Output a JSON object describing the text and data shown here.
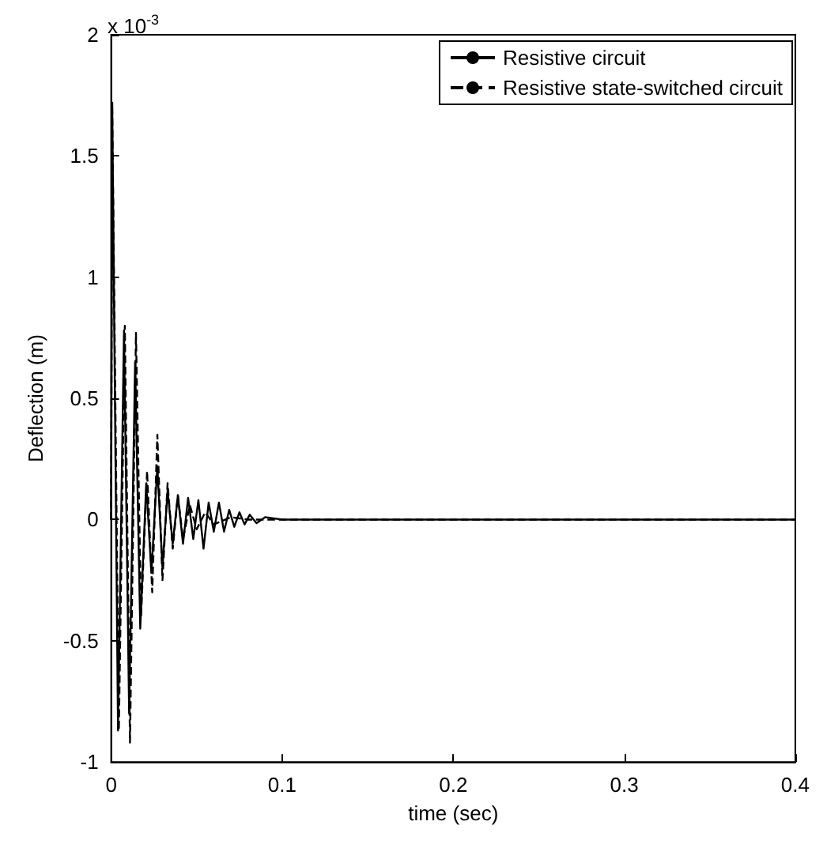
{
  "chart_data": {
    "type": "line",
    "xlabel": "time (sec)",
    "ylabel": "Deflection (m)",
    "annotations": [
      "x 10$^{-3}$"
    ],
    "xlim": [
      0,
      0.4
    ],
    "xticks": [
      0,
      0.1,
      0.2,
      0.3,
      0.4
    ],
    "ylim": [
      -1,
      2
    ],
    "yticks": [
      -1,
      -0.5,
      0,
      0.5,
      1,
      1.5,
      2
    ],
    "grid": false,
    "legend": "top right",
    "marker": "none",
    "series": [
      {
        "name": "Resistive circuit",
        "color": "#000000",
        "line_style": "solid",
        "x": [
          0,
          0.0006,
          0.004,
          0.0075,
          0.0105,
          0.014,
          0.017,
          0.0205,
          0.0235,
          0.027,
          0.03,
          0.033,
          0.036,
          0.039,
          0.042,
          0.045,
          0.048,
          0.051,
          0.054,
          0.057,
          0.06,
          0.063,
          0.066,
          0.069,
          0.072,
          0.075,
          0.078,
          0.081,
          0.085,
          0.09,
          0.1,
          0.4
        ],
        "values": [
          0,
          1.72,
          -0.87,
          0.78,
          -0.8,
          0.65,
          -0.45,
          0.15,
          -0.22,
          0.22,
          -0.2,
          0.12,
          -0.1,
          0.1,
          -0.1,
          0.09,
          -0.08,
          0.08,
          -0.12,
          0.07,
          -0.05,
          0.07,
          -0.05,
          0.04,
          -0.03,
          0.03,
          -0.02,
          0.02,
          -0.015,
          0.01,
          0,
          0
        ]
      },
      {
        "name": "Resistive state-switched circuit",
        "color": "#000000",
        "line_style": "dashed",
        "x": [
          0,
          0.0006,
          0.0045,
          0.008,
          0.011,
          0.0145,
          0.0175,
          0.021,
          0.024,
          0.027,
          0.03,
          0.033,
          0.036,
          0.039,
          0.042,
          0.046,
          0.05,
          0.055,
          0.06,
          0.07,
          0.08,
          0.4
        ],
        "values": [
          0,
          1.72,
          -0.87,
          0.8,
          -0.92,
          0.77,
          -0.4,
          0.2,
          -0.3,
          0.35,
          -0.25,
          0.15,
          -0.12,
          0.1,
          -0.08,
          0.06,
          -0.04,
          0.03,
          -0.02,
          0.01,
          0,
          0
        ]
      }
    ]
  }
}
